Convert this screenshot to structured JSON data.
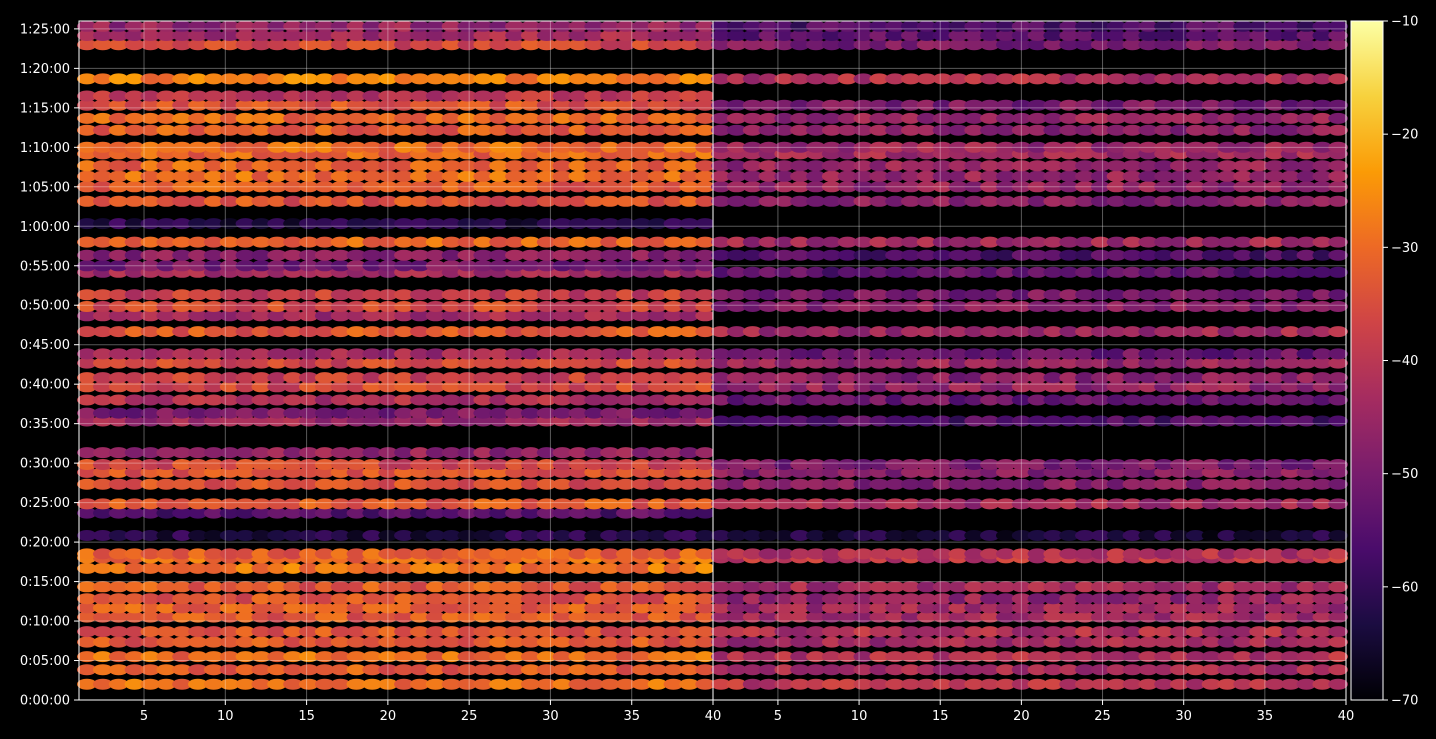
{
  "chart_data": {
    "type": "heatmap",
    "title": "",
    "xlabel": "",
    "ylabel": "",
    "colormap": "inferno",
    "background": "#000000",
    "colorbar": {
      "vmin": -70,
      "vmax": -10,
      "ticks": [
        -70,
        -60,
        -50,
        -40,
        -30,
        -20,
        -10
      ],
      "tick_labels": [
        "−70",
        "−60",
        "−50",
        "−40",
        "−30",
        "−20",
        "−10"
      ],
      "colors": [
        "#000004",
        "#1b0c41",
        "#4a0c6b",
        "#781c6d",
        "#a52c60",
        "#cf4446",
        "#ed6925",
        "#fb9b06",
        "#f7d13d",
        "#fcffa4"
      ]
    },
    "grid": true,
    "y_axis": {
      "range_seconds": [
        0,
        5160
      ],
      "tick_seconds": [
        0,
        300,
        600,
        900,
        1200,
        1500,
        1800,
        2100,
        2400,
        2700,
        3000,
        3300,
        3600,
        3900,
        4200,
        4500,
        4800,
        5100
      ],
      "tick_labels": [
        "0:00:00",
        "0:05:00",
        "0:10:00",
        "0:15:00",
        "0:20:00",
        "0:25:00",
        "0:30:00",
        "0:35:00",
        "0:40:00",
        "0:45:00",
        "0:50:00",
        "0:55:00",
        "1:00:00",
        "1:05:00",
        "1:10:00",
        "1:15:00",
        "1:20:00",
        "1:25:00"
      ]
    },
    "panels": [
      {
        "xlim": [
          1,
          40
        ],
        "x_ticks": [
          5,
          10,
          15,
          20,
          25,
          30,
          35,
          40
        ],
        "x_tick_labels": [
          "5",
          "10",
          "15",
          "20",
          "25",
          "30",
          "35",
          "40"
        ],
        "bands": [
          {
            "t": 120,
            "v": -30
          },
          {
            "t": 230,
            "v": -32
          },
          {
            "t": 330,
            "v": -30
          },
          {
            "t": 440,
            "v": -33
          },
          {
            "t": 520,
            "v": -34
          },
          {
            "t": 630,
            "v": -33
          },
          {
            "t": 700,
            "v": -32
          },
          {
            "t": 770,
            "v": -34
          },
          {
            "t": 860,
            "v": -33
          },
          {
            "t": 1000,
            "v": -28
          },
          {
            "t": 1080,
            "v": -30
          },
          {
            "t": 1110,
            "v": -32
          },
          {
            "t": 1250,
            "v": -62
          },
          {
            "t": 1420,
            "v": -55
          },
          {
            "t": 1490,
            "v": -33
          },
          {
            "t": 1640,
            "v": -35
          },
          {
            "t": 1730,
            "v": -34
          },
          {
            "t": 1790,
            "v": -36
          },
          {
            "t": 1880,
            "v": -46
          },
          {
            "t": 2120,
            "v": -44
          },
          {
            "t": 2180,
            "v": -50
          },
          {
            "t": 2280,
            "v": -42
          },
          {
            "t": 2380,
            "v": -36
          },
          {
            "t": 2450,
            "v": -38
          },
          {
            "t": 2560,
            "v": -36
          },
          {
            "t": 2630,
            "v": -44
          },
          {
            "t": 2800,
            "v": -33
          },
          {
            "t": 2920,
            "v": -44
          },
          {
            "t": 2990,
            "v": -36
          },
          {
            "t": 3080,
            "v": -38
          },
          {
            "t": 3250,
            "v": -44
          },
          {
            "t": 3300,
            "v": -50
          },
          {
            "t": 3380,
            "v": -48
          },
          {
            "t": 3480,
            "v": -31
          },
          {
            "t": 3620,
            "v": -62
          },
          {
            "t": 3790,
            "v": -34
          },
          {
            "t": 3900,
            "v": -32
          },
          {
            "t": 3980,
            "v": -30
          },
          {
            "t": 4060,
            "v": -31
          },
          {
            "t": 4150,
            "v": -31
          },
          {
            "t": 4200,
            "v": -30
          },
          {
            "t": 4330,
            "v": -32
          },
          {
            "t": 4420,
            "v": -31
          },
          {
            "t": 4520,
            "v": -34
          },
          {
            "t": 4590,
            "v": -40
          },
          {
            "t": 4720,
            "v": -27
          },
          {
            "t": 4980,
            "v": -36
          },
          {
            "t": 5050,
            "v": -44
          },
          {
            "t": 5120,
            "v": -46
          }
        ]
      },
      {
        "xlim": [
          1,
          40
        ],
        "x_ticks": [
          5,
          10,
          15,
          20,
          25,
          30,
          35,
          40
        ],
        "x_tick_labels": [
          "5",
          "10",
          "15",
          "20",
          "25",
          "30",
          "35",
          "40"
        ],
        "bands": [
          {
            "t": 120,
            "v": -40
          },
          {
            "t": 230,
            "v": -43
          },
          {
            "t": 330,
            "v": -42
          },
          {
            "t": 440,
            "v": -44
          },
          {
            "t": 520,
            "v": -42
          },
          {
            "t": 630,
            "v": -44
          },
          {
            "t": 700,
            "v": -44
          },
          {
            "t": 770,
            "v": -46
          },
          {
            "t": 860,
            "v": -44
          },
          {
            "t": 1080,
            "v": -40
          },
          {
            "t": 1110,
            "v": -42
          },
          {
            "t": 1250,
            "v": -64
          },
          {
            "t": 1490,
            "v": -44
          },
          {
            "t": 1640,
            "v": -48
          },
          {
            "t": 1730,
            "v": -48
          },
          {
            "t": 1790,
            "v": -50
          },
          {
            "t": 2120,
            "v": -56
          },
          {
            "t": 2280,
            "v": -52
          },
          {
            "t": 2380,
            "v": -46
          },
          {
            "t": 2450,
            "v": -48
          },
          {
            "t": 2560,
            "v": -46
          },
          {
            "t": 2630,
            "v": -52
          },
          {
            "t": 2800,
            "v": -44
          },
          {
            "t": 2990,
            "v": -48
          },
          {
            "t": 3080,
            "v": -50
          },
          {
            "t": 3250,
            "v": -54
          },
          {
            "t": 3380,
            "v": -56
          },
          {
            "t": 3480,
            "v": -44
          },
          {
            "t": 3790,
            "v": -48
          },
          {
            "t": 3900,
            "v": -46
          },
          {
            "t": 3980,
            "v": -46
          },
          {
            "t": 4060,
            "v": -46
          },
          {
            "t": 4150,
            "v": -44
          },
          {
            "t": 4200,
            "v": -45
          },
          {
            "t": 4330,
            "v": -47
          },
          {
            "t": 4420,
            "v": -46
          },
          {
            "t": 4520,
            "v": -50
          },
          {
            "t": 4720,
            "v": -42
          },
          {
            "t": 4980,
            "v": -50
          },
          {
            "t": 5050,
            "v": -54
          },
          {
            "t": 5120,
            "v": -56
          }
        ]
      }
    ]
  }
}
